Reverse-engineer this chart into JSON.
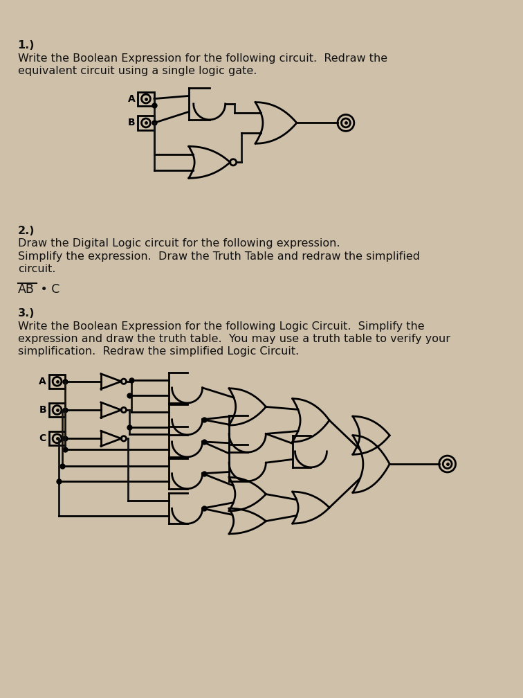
{
  "bg_color": "#cfc0aa",
  "text_color": "#111111",
  "line_color": "#111111",
  "q1_title": "1.)",
  "q1_line1": "Write the Boolean Expression for the following circuit.  Redraw the",
  "q1_line2": "equivalent circuit using a single logic gate.",
  "q2_title": "2.)",
  "q2_line1": "Draw the Digital Logic circuit for the following expression.",
  "q2_line2": "Simplify the expression.  Draw the Truth Table and redraw the simplified",
  "q2_line3": "circuit.",
  "q3_title": "3.)",
  "q3_line1": "Write the Boolean Expression for the following Logic Circuit.  Simplify the",
  "q3_line2": "expression and draw the truth table.  You may use a truth table to verify your",
  "q3_line3": "simplification.  Redraw the simplified Logic Circuit.",
  "font_size_body": 11.5
}
